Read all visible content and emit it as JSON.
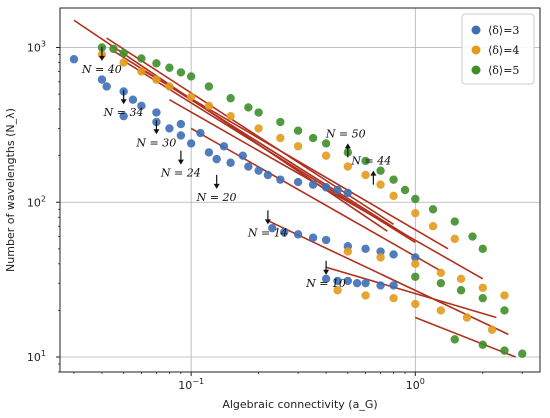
{
  "chart_data": {
    "type": "scatter",
    "xscale": "log",
    "yscale": "log",
    "xlim": [
      0.026,
      3.6
    ],
    "ylim": [
      8,
      1800
    ],
    "xlabel": "Algebraic connectivity (a_G)",
    "ylabel": "Number of wavelengths (N_λ)",
    "grid": true,
    "legend_position": "top-right",
    "x_ticks": [
      {
        "value": 0.1,
        "base": "10",
        "exp": "−1"
      },
      {
        "value": 1,
        "base": "10",
        "exp": "0"
      }
    ],
    "y_ticks": [
      {
        "value": 10,
        "base": "10",
        "exp": "1"
      },
      {
        "value": 100,
        "base": "10",
        "exp": "2"
      },
      {
        "value": 1000,
        "base": "10",
        "exp": "3"
      }
    ],
    "legend": [
      {
        "label": "⟨δ⟩=3",
        "color": "#3e6fb5"
      },
      {
        "label": "⟨δ⟩=4",
        "color": "#e39b1c"
      },
      {
        "label": "⟨δ⟩=5",
        "color": "#3f8f2a"
      }
    ],
    "series": [
      {
        "name": "⟨δ⟩=3",
        "color": "#3e6fb5",
        "points": [
          [
            0.03,
            840
          ],
          [
            0.04,
            620
          ],
          [
            0.042,
            560
          ],
          [
            0.05,
            520
          ],
          [
            0.05,
            360
          ],
          [
            0.055,
            460
          ],
          [
            0.06,
            420
          ],
          [
            0.07,
            330
          ],
          [
            0.08,
            300
          ],
          [
            0.09,
            270
          ],
          [
            0.1,
            240
          ],
          [
            0.12,
            210
          ],
          [
            0.13,
            190
          ],
          [
            0.15,
            180
          ],
          [
            0.18,
            170
          ],
          [
            0.2,
            160
          ],
          [
            0.22,
            150
          ],
          [
            0.25,
            140
          ],
          [
            0.3,
            135
          ],
          [
            0.35,
            130
          ],
          [
            0.4,
            125
          ],
          [
            0.45,
            120
          ],
          [
            0.5,
            115
          ],
          [
            0.07,
            380
          ],
          [
            0.09,
            320
          ],
          [
            0.11,
            280
          ],
          [
            0.14,
            230
          ],
          [
            0.17,
            200
          ],
          [
            0.23,
            68
          ],
          [
            0.26,
            64
          ],
          [
            0.3,
            62
          ],
          [
            0.35,
            59
          ],
          [
            0.4,
            57
          ],
          [
            0.5,
            52
          ],
          [
            0.6,
            50
          ],
          [
            0.7,
            48
          ],
          [
            0.8,
            46
          ],
          [
            1.0,
            44
          ],
          [
            0.4,
            32
          ],
          [
            0.45,
            31
          ],
          [
            0.5,
            31
          ],
          [
            0.55,
            30
          ],
          [
            0.6,
            30
          ],
          [
            0.7,
            29
          ],
          [
            0.8,
            29
          ]
        ]
      },
      {
        "name": "⟨δ⟩=4",
        "color": "#e39b1c",
        "points": [
          [
            0.04,
            900
          ],
          [
            0.05,
            800
          ],
          [
            0.06,
            700
          ],
          [
            0.07,
            620
          ],
          [
            0.08,
            560
          ],
          [
            0.1,
            480
          ],
          [
            0.12,
            420
          ],
          [
            0.15,
            360
          ],
          [
            0.2,
            300
          ],
          [
            0.25,
            260
          ],
          [
            0.3,
            230
          ],
          [
            0.4,
            200
          ],
          [
            0.5,
            170
          ],
          [
            0.6,
            150
          ],
          [
            0.7,
            130
          ],
          [
            0.8,
            110
          ],
          [
            1.0,
            85
          ],
          [
            1.2,
            70
          ],
          [
            1.5,
            58
          ],
          [
            0.5,
            48
          ],
          [
            0.7,
            44
          ],
          [
            1.0,
            40
          ],
          [
            1.3,
            35
          ],
          [
            1.6,
            32
          ],
          [
            2.0,
            28
          ],
          [
            2.5,
            25
          ],
          [
            0.45,
            27
          ],
          [
            0.6,
            25
          ],
          [
            0.8,
            24
          ],
          [
            1.0,
            22
          ],
          [
            1.3,
            20
          ],
          [
            1.7,
            18
          ],
          [
            2.2,
            15
          ]
        ]
      },
      {
        "name": "⟨δ⟩=5",
        "color": "#3f8f2a",
        "points": [
          [
            0.04,
            1000
          ],
          [
            0.045,
            980
          ],
          [
            0.05,
            920
          ],
          [
            0.06,
            850
          ],
          [
            0.07,
            790
          ],
          [
            0.08,
            740
          ],
          [
            0.09,
            690
          ],
          [
            0.1,
            650
          ],
          [
            0.12,
            560
          ],
          [
            0.15,
            470
          ],
          [
            0.18,
            410
          ],
          [
            0.2,
            380
          ],
          [
            0.25,
            330
          ],
          [
            0.3,
            290
          ],
          [
            0.35,
            260
          ],
          [
            0.4,
            240
          ],
          [
            0.5,
            210
          ],
          [
            0.6,
            185
          ],
          [
            0.7,
            160
          ],
          [
            0.8,
            140
          ],
          [
            0.9,
            120
          ],
          [
            1.0,
            105
          ],
          [
            1.2,
            90
          ],
          [
            1.5,
            75
          ],
          [
            1.8,
            60
          ],
          [
            2.0,
            50
          ],
          [
            1.0,
            33
          ],
          [
            1.3,
            30
          ],
          [
            1.6,
            27
          ],
          [
            2.0,
            24
          ],
          [
            2.5,
            20
          ],
          [
            1.5,
            13
          ],
          [
            2.0,
            12
          ],
          [
            2.5,
            11
          ],
          [
            3.0,
            10.5
          ]
        ]
      }
    ],
    "fit_lines": [
      {
        "x": [
          0.03,
          0.75
        ],
        "y": [
          1500,
          65
        ]
      },
      {
        "x": [
          0.042,
          0.8
        ],
        "y": [
          1150,
          72
        ]
      },
      {
        "x": [
          0.045,
          0.9
        ],
        "y": [
          950,
          62
        ]
      },
      {
        "x": [
          0.05,
          1.0
        ],
        "y": [
          820,
          55
        ]
      },
      {
        "x": [
          0.06,
          1.4
        ],
        "y": [
          720,
          50
        ]
      },
      {
        "x": [
          0.08,
          2.0
        ],
        "y": [
          460,
          32
        ]
      },
      {
        "x": [
          0.1,
          1.3
        ],
        "y": [
          300,
          36
        ]
      },
      {
        "x": [
          0.22,
          2.6
        ],
        "y": [
          76,
          14
        ]
      },
      {
        "x": [
          0.4,
          2.3
        ],
        "y": [
          38,
          18
        ]
      },
      {
        "x": [
          1.0,
          2.8
        ],
        "y": [
          18,
          10
        ]
      }
    ],
    "annotations": [
      {
        "label": "N = 40",
        "x": 0.04,
        "y": 820,
        "dir": "down"
      },
      {
        "label": "N = 34",
        "x": 0.05,
        "y": 430,
        "dir": "down"
      },
      {
        "label": "N = 30",
        "x": 0.07,
        "y": 275,
        "dir": "down"
      },
      {
        "label": "N = 24",
        "x": 0.09,
        "y": 175,
        "dir": "down"
      },
      {
        "label": "N = 20",
        "x": 0.13,
        "y": 122,
        "dir": "down"
      },
      {
        "label": "N = 14",
        "x": 0.22,
        "y": 72,
        "dir": "down"
      },
      {
        "label": "N = 10",
        "x": 0.4,
        "y": 34,
        "dir": "down"
      },
      {
        "label": "N = 50",
        "x": 0.5,
        "y": 240,
        "dir": "up"
      },
      {
        "label": "N = 44",
        "x": 0.65,
        "y": 160,
        "dir": "up"
      }
    ]
  }
}
